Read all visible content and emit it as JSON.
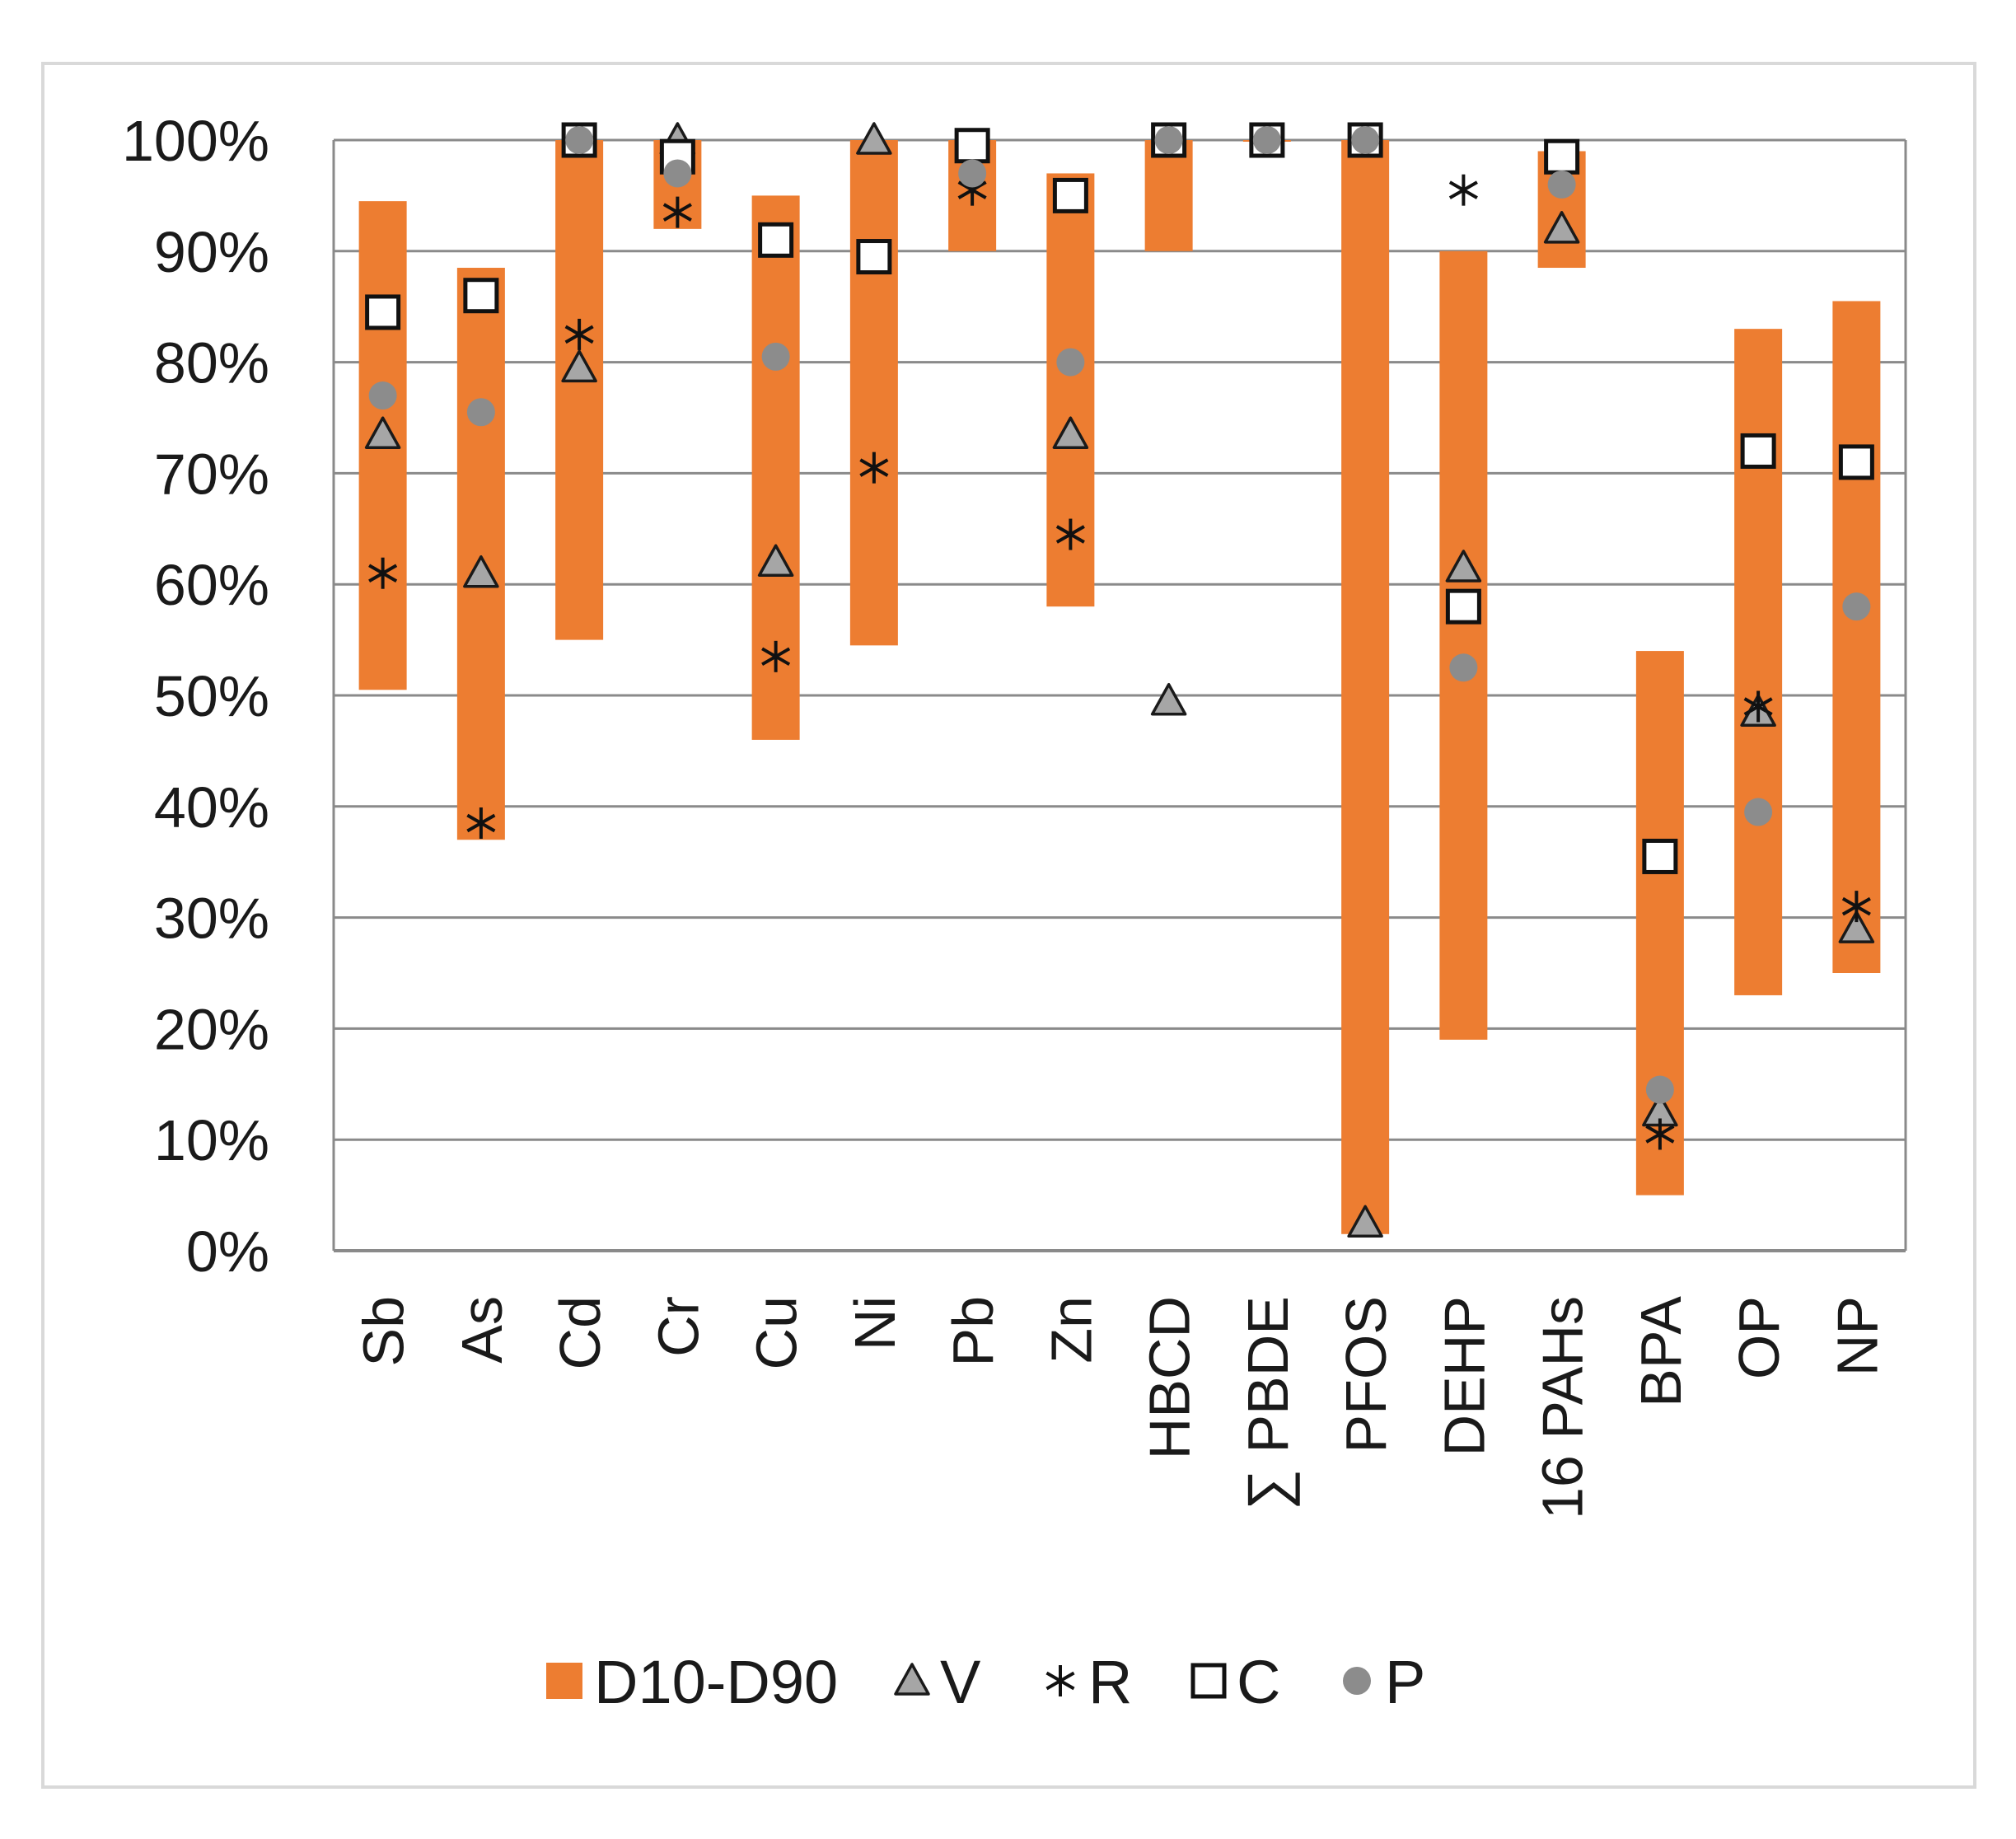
{
  "chart_data": {
    "type": "bar",
    "title": "",
    "xlabel": "",
    "ylabel": "",
    "ylim": [
      0,
      100
    ],
    "y_ticks": [
      "0%",
      "10%",
      "20%",
      "30%",
      "40%",
      "50%",
      "60%",
      "70%",
      "80%",
      "90%",
      "100%"
    ],
    "grid": true,
    "legend_position": "bottom",
    "categories": [
      "Sb",
      "As",
      "Cd",
      "Cr",
      "Cu",
      "Ni",
      "Pb",
      "Zn",
      "HBCD",
      "∑ PBDE",
      "PFOS",
      "DEHP",
      "16 PAHs",
      "BPA",
      "OP",
      "NP"
    ],
    "range_series": {
      "name": "D10-D90",
      "low": [
        50.5,
        37,
        55,
        92,
        46,
        54.5,
        90,
        58,
        90,
        100,
        1.5,
        19,
        88.5,
        5,
        23,
        25
      ],
      "high": [
        94.5,
        88.5,
        100,
        100,
        95,
        100,
        100,
        97,
        100,
        100,
        100,
        90,
        99,
        54,
        83,
        85.5
      ]
    },
    "series": [
      {
        "name": "V",
        "marker": "triangle",
        "values": [
          73.5,
          61,
          79.5,
          100,
          62,
          100,
          null,
          73.5,
          49.5,
          null,
          2.5,
          61.5,
          92,
          12.5,
          48.5,
          29
        ]
      },
      {
        "name": "R",
        "marker": "asterisk",
        "values": [
          61,
          38.5,
          82.5,
          93.5,
          53.5,
          70.5,
          95.5,
          64.5,
          null,
          null,
          null,
          95.5,
          null,
          10.5,
          49,
          31
        ]
      },
      {
        "name": "C",
        "marker": "square",
        "values": [
          84.5,
          86,
          100,
          98.5,
          91,
          89.5,
          99.5,
          95,
          100,
          100,
          100,
          58,
          98.5,
          35.5,
          72,
          71
        ]
      },
      {
        "name": "P",
        "marker": "circle",
        "values": [
          77,
          75.5,
          100,
          97,
          80.5,
          null,
          97,
          80,
          100,
          100,
          100,
          52.5,
          96,
          14.5,
          39.5,
          58
        ]
      }
    ],
    "legend": [
      "D10-D90",
      "V",
      "R",
      "C",
      "P"
    ],
    "colors": {
      "range": "#ED7D31",
      "marker_gray": "#A6A6A6",
      "marker_point": "#8C8C8C",
      "grid": "#8A8A8A",
      "axis": "#8A8A8A",
      "frame": "#D9D9D9"
    }
  }
}
